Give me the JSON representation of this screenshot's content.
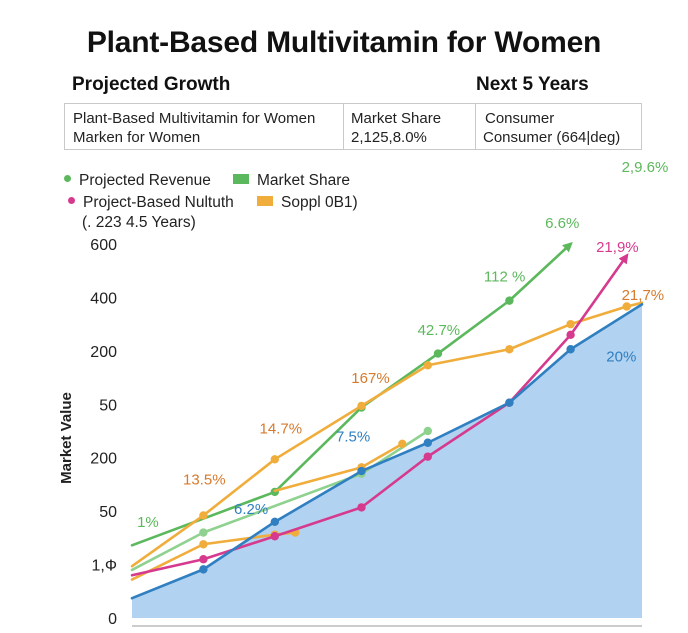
{
  "header": {
    "title": "Plant-Based Multivitamin for Women",
    "subtitle_left": "Projected Growth",
    "subtitle_right": "Next 5 Years"
  },
  "info_table": {
    "col1": [
      "Plant-Based Multivitamin for Women",
      "Marken for Women"
    ],
    "col2": [
      "Market Share",
      "2,125,8.0%"
    ],
    "col3": [
      "Consumer",
      "Consumer (664|deg)"
    ]
  },
  "legend": {
    "items": [
      {
        "label": "Projected Revenue",
        "color": "#5cb85c",
        "marker": "dot"
      },
      {
        "label": "Market Share",
        "color": "#5cb85c",
        "marker": "bar"
      },
      {
        "label": "Project-Based Nultuth",
        "color": "#d63a8f",
        "marker": "dot"
      },
      {
        "label": "Soppl 0B1)",
        "color": "#f0ad3c",
        "marker": "bar"
      }
    ],
    "note": "(. 223 4.5 Years)"
  },
  "chart_data": {
    "type": "line",
    "ylabel": "Market Value",
    "xlabel": "",
    "y_tick_labels": [
      "600",
      "400",
      "200",
      "50",
      "200",
      "50",
      "1,Ф",
      "0"
    ],
    "x_range": [
      0,
      10
    ],
    "y_range": [
      0,
      7
    ],
    "grid": false,
    "legend_position": "top-left",
    "series": [
      {
        "name": "Projected Revenue",
        "color": "#5cb85c",
        "x": [
          0,
          2.8,
          4.5,
          6.0,
          7.4,
          8.6
        ],
        "y": [
          1.36,
          2.36,
          3.94,
          4.95,
          5.94,
          7.0
        ],
        "arrow": true
      },
      {
        "name": "",
        "color": "#8fd18f",
        "x": [
          0,
          1.4,
          4.5,
          5.8
        ],
        "y": [
          0.9,
          1.6,
          2.7,
          3.5
        ]
      },
      {
        "name": "Project-Based Nultuth",
        "color": "#d63a8f",
        "x": [
          0,
          1.4,
          2.8,
          4.5,
          5.8,
          7.4,
          8.6,
          9.7
        ],
        "y": [
          0.8,
          1.1,
          1.53,
          2.07,
          3.02,
          4.03,
          5.3,
          6.78
        ]
      },
      {
        "name": "Soppl 0B1)",
        "color": "#f0ad3c",
        "x": [
          0,
          1.4,
          2.8,
          4.5,
          5.8,
          7.4,
          8.6,
          9.7,
          10.0
        ],
        "y": [
          0.97,
          1.92,
          2.97,
          3.97,
          4.73,
          5.03,
          5.5,
          5.83,
          5.9
        ]
      },
      {
        "name": "",
        "color": "#f0ad3c",
        "x": [
          0,
          1.4,
          2.8,
          3.2
        ],
        "y": [
          0.72,
          1.38,
          1.56,
          1.6
        ]
      },
      {
        "name": "",
        "color": "#f0ad3c",
        "x": [
          2.8,
          4.5,
          5.3
        ],
        "y": [
          2.38,
          2.82,
          3.26
        ]
      },
      {
        "name": "",
        "color": "#2f7fc1",
        "fill": "#a9cdee",
        "x": [
          0,
          1.4,
          2.8,
          4.5,
          5.8,
          7.4,
          8.6,
          10.0
        ],
        "y": [
          0.37,
          0.91,
          1.8,
          2.75,
          3.28,
          4.03,
          5.03,
          5.87
        ]
      }
    ],
    "annotations": [
      {
        "text": "1%",
        "x": 0.1,
        "y": 1.7,
        "color": "#5cb85c"
      },
      {
        "text": "13.5%",
        "x": 1.0,
        "y": 2.5,
        "color": "#d77a2c"
      },
      {
        "text": "6.2%",
        "x": 2.0,
        "y": 1.95,
        "color": "#2f7fc1"
      },
      {
        "text": "14.7%",
        "x": 2.5,
        "y": 3.45,
        "color": "#d77a2c"
      },
      {
        "text": "7.5%",
        "x": 4.0,
        "y": 3.3,
        "color": "#2f7fc1"
      },
      {
        "text": "167%",
        "x": 4.3,
        "y": 4.4,
        "color": "#d77a2c"
      },
      {
        "text": "42.7%",
        "x": 5.6,
        "y": 5.3,
        "color": "#5cb85c"
      },
      {
        "text": "112 %",
        "x": 6.9,
        "y": 6.3,
        "color": "#5cb85c"
      },
      {
        "text": "6.6%",
        "x": 8.1,
        "y": 7.3,
        "color": "#5cb85c"
      },
      {
        "text": "2,9.6%",
        "x": 9.6,
        "y": 8.35,
        "color": "#5cb85c"
      },
      {
        "text": "21,9%",
        "x": 9.1,
        "y": 6.85,
        "color": "#d63a8f"
      },
      {
        "text": "21,7%",
        "x": 9.6,
        "y": 5.95,
        "color": "#d77a2c"
      },
      {
        "text": "20%",
        "x": 9.3,
        "y": 4.8,
        "color": "#2f7fc1"
      }
    ]
  }
}
